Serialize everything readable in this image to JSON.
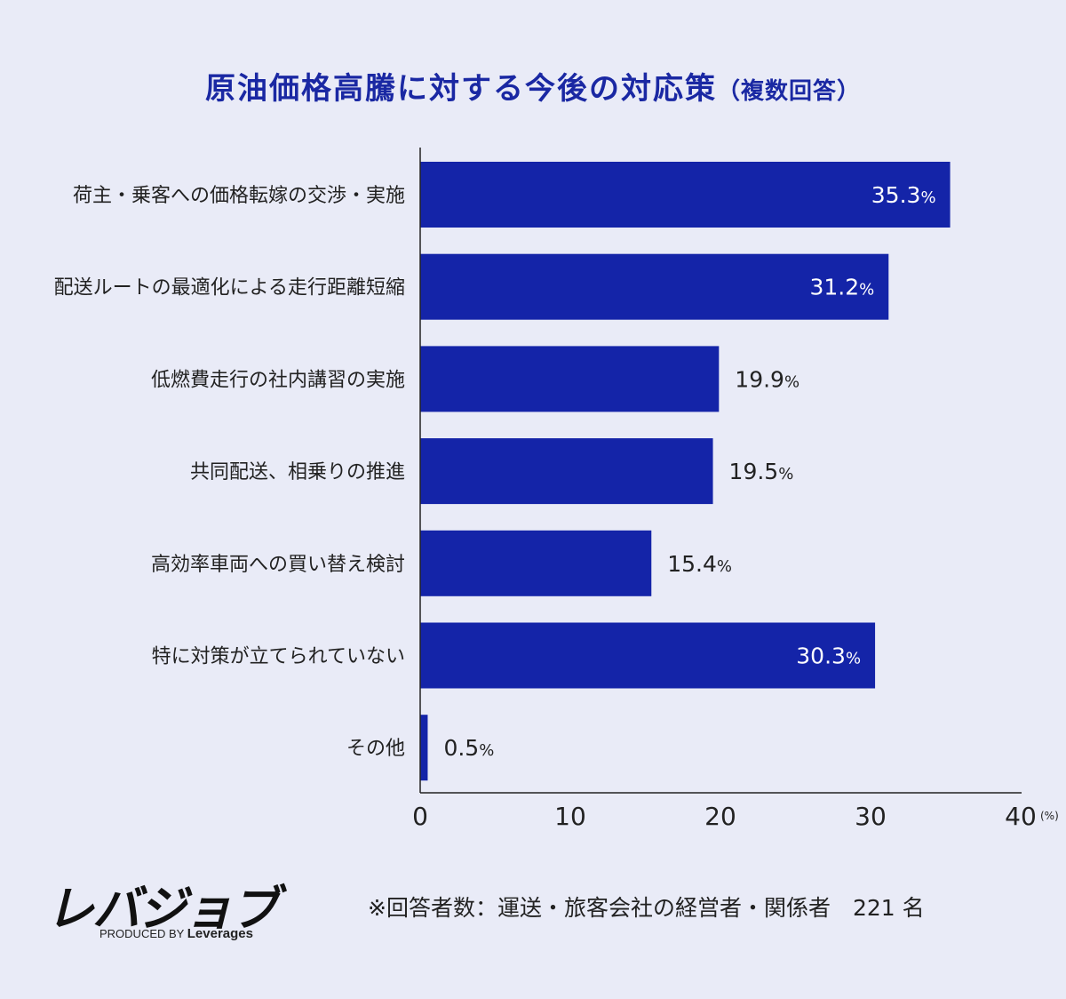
{
  "title": "原油価格高騰に対する今後の対応策",
  "title_suffix": "（複数回答）",
  "chart_data": {
    "type": "bar",
    "orientation": "horizontal",
    "categories": [
      "荷主・乗客への価格転嫁の交渉・実施",
      "配送ルートの最適化による走行距離短縮",
      "低燃費走行の社内講習の実施",
      "共同配送、相乗りの推進",
      "高効率車両への買い替え検討",
      "特に対策が立てられていない",
      "その他"
    ],
    "values": [
      35.3,
      31.2,
      19.9,
      19.5,
      15.4,
      30.3,
      0.5
    ],
    "value_unit": "%",
    "xlim": [
      0,
      40
    ],
    "xticks": [
      0,
      10,
      20,
      30,
      40
    ],
    "xunit": "(%)",
    "bar_color": "#1424a8",
    "grid": false
  },
  "logo": {
    "main": "レバジョブ",
    "produced_by": "PRODUCED BY",
    "brand": "Leverages"
  },
  "note": "※回答者数：運送・旅客会社の経営者・関係者　221 名"
}
